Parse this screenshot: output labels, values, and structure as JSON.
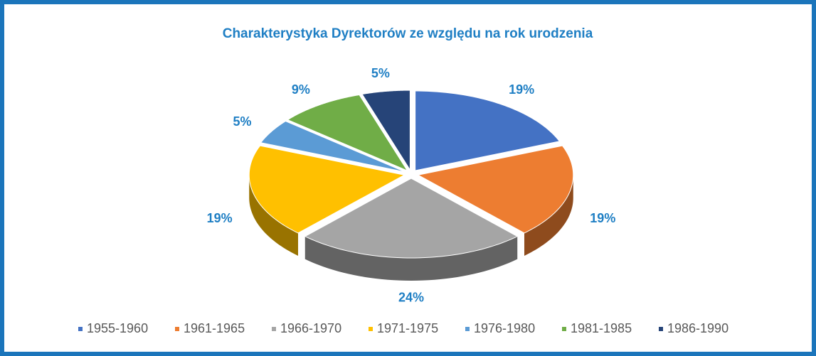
{
  "chart_data": {
    "type": "pie",
    "title": "Charakterystyka Dyrektorów ze względu na rok urodzenia",
    "categories": [
      "1955-1960",
      "1961-1965",
      "1966-1970",
      "1971-1975",
      "1976-1980",
      "1981-1985",
      "1986-1990"
    ],
    "values": [
      19,
      19,
      24,
      19,
      5,
      9,
      5
    ],
    "value_labels": [
      "19%",
      "19%",
      "24%",
      "19%",
      "5%",
      "9%",
      "5%"
    ],
    "colors": [
      "#4472c4",
      "#ed7d31",
      "#a5a5a5",
      "#ffc000",
      "#5b9bd5",
      "#70ad47",
      "#264478"
    ],
    "legend": "bottom"
  }
}
